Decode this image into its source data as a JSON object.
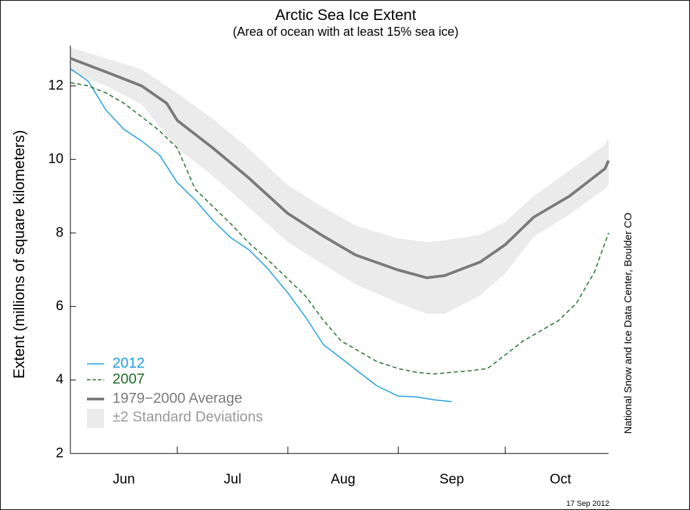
{
  "chart_data": {
    "type": "line",
    "title": "Arctic Sea Ice Extent",
    "subtitle": "(Area of ocean with at least 15% sea ice)",
    "y_label": "Extent (millions of square kilometers)",
    "source": "National Snow and Ice Data Center, Boulder CO",
    "date": "17 Sep 2012",
    "xlim": [
      0,
      151
    ],
    "ylim": [
      2,
      13.1
    ],
    "yticks": [
      2,
      4,
      6,
      8,
      10,
      12
    ],
    "xticks": [
      {
        "value": 15,
        "label": "Jun"
      },
      {
        "value": 45.5,
        "label": "Jul"
      },
      {
        "value": 76.5,
        "label": "Aug"
      },
      {
        "value": 107,
        "label": "Sep"
      },
      {
        "value": 137.5,
        "label": "Oct"
      }
    ],
    "month_boundaries": [
      30,
      61,
      92,
      122
    ],
    "band": {
      "name": "±2 Standard Deviations",
      "color": "#ebebeb",
      "x": [
        0,
        10,
        20,
        30,
        40,
        50,
        61,
        70,
        80,
        92,
        100,
        105,
        115,
        122,
        130,
        140,
        150,
        151
      ],
      "upper": [
        13.05,
        12.75,
        12.45,
        11.8,
        11.1,
        10.3,
        9.3,
        8.75,
        8.2,
        7.85,
        7.75,
        7.8,
        7.95,
        8.3,
        9.0,
        9.7,
        10.4,
        10.6
      ],
      "lower": [
        12.4,
        12.0,
        11.5,
        10.3,
        9.55,
        8.7,
        7.75,
        7.2,
        6.6,
        6.1,
        5.8,
        5.8,
        6.3,
        6.9,
        7.9,
        8.5,
        9.2,
        9.3
      ]
    },
    "series": [
      {
        "name": "2012",
        "color": "#1a9be0",
        "dash": false,
        "width": 1.5,
        "x": [
          0,
          5,
          10,
          15,
          20,
          25,
          30,
          35,
          40,
          45,
          50,
          55,
          61,
          66,
          71,
          76,
          81,
          86,
          92,
          97,
          102,
          107
        ],
        "values": [
          12.47,
          12.13,
          11.34,
          10.82,
          10.5,
          10.12,
          9.37,
          8.9,
          8.34,
          7.87,
          7.55,
          7.07,
          6.37,
          5.71,
          4.96,
          4.59,
          4.21,
          3.84,
          3.56,
          3.54,
          3.46,
          3.41
        ]
      },
      {
        "name": "2007",
        "color": "#1e6b2a",
        "dash": true,
        "width": 1.5,
        "x": [
          0,
          5,
          10,
          15,
          20,
          25,
          30,
          35,
          40,
          45,
          50,
          55,
          61,
          66,
          71,
          76,
          81,
          86,
          92,
          97,
          102,
          107,
          112,
          117,
          122,
          127,
          132,
          137,
          142,
          147,
          151
        ],
        "values": [
          12.09,
          12.0,
          11.81,
          11.53,
          11.16,
          10.78,
          10.31,
          9.19,
          8.72,
          8.25,
          7.74,
          7.31,
          6.75,
          6.28,
          5.62,
          5.06,
          4.78,
          4.5,
          4.31,
          4.21,
          4.16,
          4.21,
          4.25,
          4.31,
          4.68,
          5.06,
          5.34,
          5.62,
          6.09,
          6.93,
          8.0
        ]
      },
      {
        "name": "1979−2000 Average",
        "color": "#7a7a7a",
        "dash": false,
        "width": 4,
        "x": [
          0,
          10,
          20,
          27,
          30,
          40,
          50,
          61,
          70,
          80,
          92,
          100,
          105,
          115,
          122,
          130,
          140,
          150,
          151
        ],
        "values": [
          12.75,
          12.38,
          12.0,
          11.53,
          11.06,
          10.31,
          9.5,
          8.53,
          7.97,
          7.4,
          6.99,
          6.78,
          6.84,
          7.21,
          7.68,
          8.43,
          9.0,
          9.75,
          9.97
        ]
      }
    ]
  }
}
